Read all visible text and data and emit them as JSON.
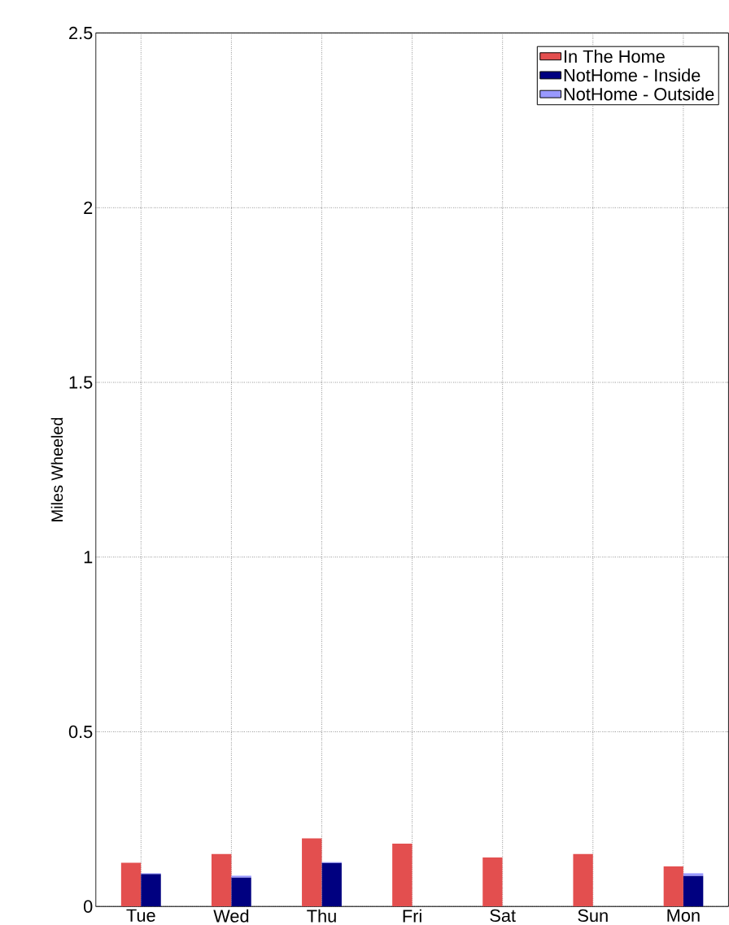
{
  "chart_data": {
    "type": "bar",
    "ylabel": "Miles Wheeled",
    "categories": [
      "Tue",
      "Wed",
      "Thu",
      "Fri",
      "Sat",
      "Sun",
      "Mon"
    ],
    "series": [
      {
        "name": "In The Home",
        "color": "#e34f4f",
        "values": [
          0.125,
          0.15,
          0.195,
          0.18,
          0.14,
          0.15,
          0.115
        ]
      },
      {
        "name": "NotHome - Inside",
        "color": "#000080",
        "values": [
          0.093,
          0.083,
          0.125,
          0,
          0,
          0,
          0.088
        ]
      },
      {
        "name": "NotHome - Outside",
        "color": "#9999ff",
        "values": [
          0.002,
          0.005,
          0.002,
          0,
          0,
          0,
          0.007
        ],
        "base": [
          0.093,
          0.083,
          0.125,
          null,
          null,
          null,
          0.088
        ]
      }
    ],
    "ylim": [
      0,
      2.5
    ],
    "yticks": [
      0,
      0.5,
      1,
      1.5,
      2,
      2.5
    ],
    "grid": true,
    "legend": "top right"
  }
}
